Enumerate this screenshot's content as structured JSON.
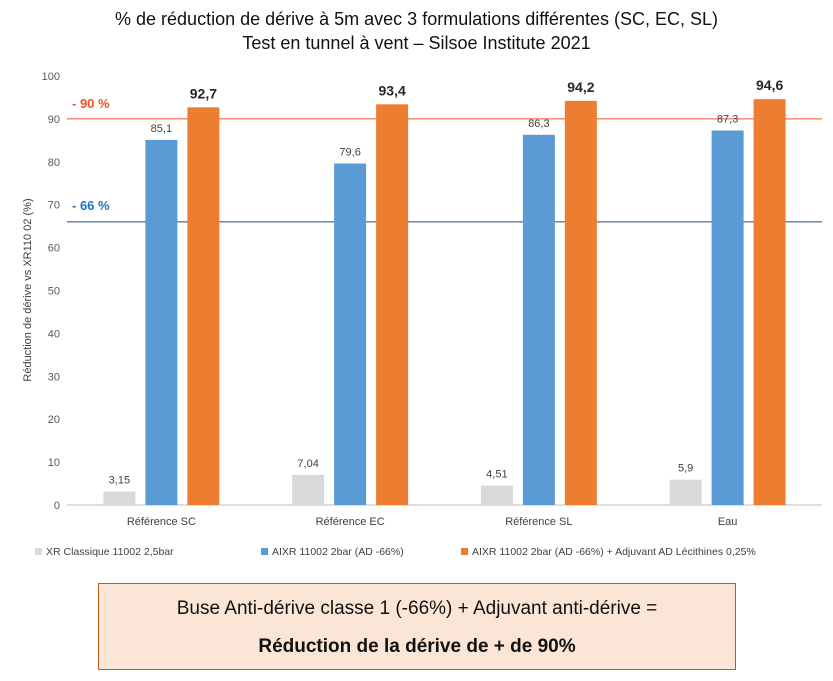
{
  "chart_data": {
    "type": "bar",
    "title": "% de réduction de dérive à 5m avec 3 formulations différentes  (SC, EC, SL)",
    "subtitle": "Test en tunnel à vent – Silsoe Institute 2021",
    "ylabel": "Réduction de dérive vs XR110 02  (%)",
    "xlabel": "",
    "ylim": [
      0,
      100
    ],
    "yticks": [
      0,
      10,
      20,
      30,
      40,
      50,
      60,
      70,
      80,
      90,
      100
    ],
    "grid": false,
    "legend_position": "bottom",
    "categories": [
      "Référence SC",
      "Référence EC",
      "Référence SL",
      "Eau"
    ],
    "series": [
      {
        "name": "XR Classique 11002 2,5bar",
        "color": "#d9d9d9",
        "values": [
          3.15,
          7.04,
          4.51,
          5.9
        ],
        "labels": [
          "3,15",
          "7,04",
          "4,51",
          "5,9"
        ]
      },
      {
        "name": "AIXR 11002 2bar (AD -66%)",
        "color": "#5b9bd5",
        "values": [
          85.1,
          79.6,
          86.3,
          87.3
        ],
        "labels": [
          "85,1",
          "79,6",
          "86,3",
          "87,3"
        ]
      },
      {
        "name": "AIXR 11002 2bar (AD -66%) + Adjuvant AD Lécithines 0,25%",
        "color": "#ed7d31",
        "values": [
          92.7,
          93.4,
          94.2,
          94.6
        ],
        "labels": [
          "92,7",
          "93,4",
          "94,2",
          "94,6"
        ]
      }
    ],
    "reference_lines": [
      {
        "value": 90,
        "label": "-  90 %",
        "color": "#f4511e"
      },
      {
        "value": 66,
        "label": "-  66 %",
        "color": "#1f4e79",
        "label_color": "#1f73c2"
      }
    ]
  },
  "note": {
    "line1": "Buse Anti-dérive classe 1 (-66%) + Adjuvant anti-dérive =",
    "line2": "Réduction de la dérive de + de 90%"
  },
  "colors": {
    "note_bg": "#fbe5d6",
    "note_border": "#c55a11"
  }
}
